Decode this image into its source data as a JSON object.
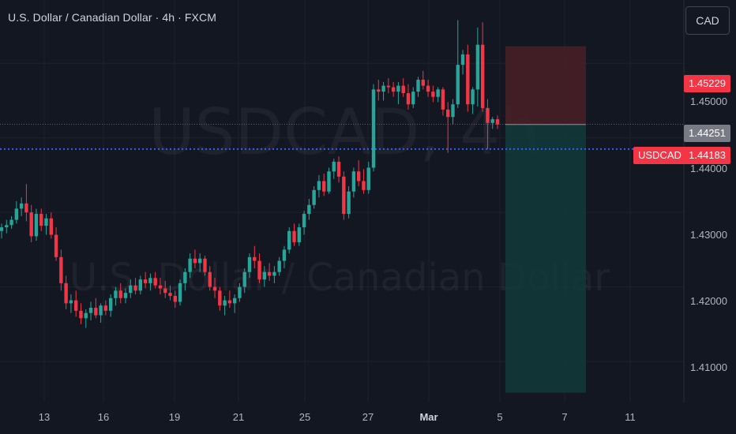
{
  "header": {
    "title": "U.S. Dollar / Canadian Dollar · 4h · FXCM",
    "currency_button": "CAD"
  },
  "watermark": {
    "symbol": "USDCAD, 4h",
    "name": "U.S. Dollar / Canadian Dollar"
  },
  "price_tags": {
    "stop": "1.45229",
    "prev_close": "1.44251",
    "symbol": "USDCAD",
    "last": "1.44183"
  },
  "colors": {
    "background": "#131722",
    "up": "#26a69a",
    "down": "#f23645",
    "stop_zone": "#4a1e26",
    "target_zone": "#12393a",
    "dotted_line": "#2962ff"
  },
  "chart_data": {
    "type": "candlestick",
    "y_ticks": [
      "1.45000",
      "1.44000",
      "1.43000",
      "1.42000",
      "1.41000"
    ],
    "x_ticks": [
      "13",
      "16",
      "19",
      "21",
      "25",
      "27",
      "Mar",
      "5",
      "7",
      "11"
    ],
    "ylim": [
      1.4045,
      1.4585
    ],
    "position": {
      "type": "short",
      "entry": 1.4418,
      "stop": 1.45229,
      "target": 1.4058
    },
    "current_price": 1.44183,
    "dotted_level": 1.4385,
    "candles": [
      [
        1.4275,
        1.4285,
        1.4265,
        1.428
      ],
      [
        1.428,
        1.429,
        1.4272,
        1.4283
      ],
      [
        1.4283,
        1.4295,
        1.4278,
        1.429
      ],
      [
        1.429,
        1.4315,
        1.4285,
        1.4305
      ],
      [
        1.4305,
        1.432,
        1.4295,
        1.4312
      ],
      [
        1.4312,
        1.4338,
        1.4288,
        1.43
      ],
      [
        1.43,
        1.431,
        1.426,
        1.4268
      ],
      [
        1.4268,
        1.4305,
        1.4262,
        1.4298
      ],
      [
        1.4298,
        1.4305,
        1.4275,
        1.4282
      ],
      [
        1.4282,
        1.4298,
        1.427,
        1.4292
      ],
      [
        1.4292,
        1.43,
        1.4265,
        1.427
      ],
      [
        1.427,
        1.428,
        1.4235,
        1.424
      ],
      [
        1.424,
        1.425,
        1.4195,
        1.4205
      ],
      [
        1.4205,
        1.4215,
        1.417,
        1.4178
      ],
      [
        1.4178,
        1.419,
        1.4165,
        1.4182
      ],
      [
        1.4182,
        1.4195,
        1.416,
        1.4168
      ],
      [
        1.4168,
        1.4178,
        1.415,
        1.4158
      ],
      [
        1.4158,
        1.417,
        1.4145,
        1.4165
      ],
      [
        1.4165,
        1.418,
        1.4155,
        1.4172
      ],
      [
        1.4172,
        1.4185,
        1.4158,
        1.4162
      ],
      [
        1.4162,
        1.4178,
        1.4152,
        1.4175
      ],
      [
        1.4175,
        1.4182,
        1.4162,
        1.4168
      ],
      [
        1.4168,
        1.419,
        1.416,
        1.4185
      ],
      [
        1.4185,
        1.42,
        1.4175,
        1.4195
      ],
      [
        1.4195,
        1.4205,
        1.4178,
        1.4185
      ],
      [
        1.4185,
        1.4198,
        1.4178,
        1.4192
      ],
      [
        1.4192,
        1.421,
        1.4185,
        1.4202
      ],
      [
        1.4202,
        1.4212,
        1.419,
        1.4195
      ],
      [
        1.4195,
        1.4215,
        1.419,
        1.421
      ],
      [
        1.421,
        1.422,
        1.4198,
        1.4205
      ],
      [
        1.4205,
        1.4218,
        1.4195,
        1.4212
      ],
      [
        1.4212,
        1.422,
        1.4198,
        1.4202
      ],
      [
        1.4202,
        1.4212,
        1.419,
        1.4198
      ],
      [
        1.4198,
        1.4208,
        1.4185,
        1.4192
      ],
      [
        1.4192,
        1.4202,
        1.4182,
        1.4188
      ],
      [
        1.4188,
        1.4195,
        1.4172,
        1.418
      ],
      [
        1.418,
        1.421,
        1.4175,
        1.4205
      ],
      [
        1.4205,
        1.4225,
        1.4195,
        1.422
      ],
      [
        1.422,
        1.4245,
        1.4212,
        1.4238
      ],
      [
        1.4238,
        1.425,
        1.4225,
        1.4232
      ],
      [
        1.4232,
        1.4245,
        1.422,
        1.4238
      ],
      [
        1.4238,
        1.4242,
        1.4215,
        1.422
      ],
      [
        1.422,
        1.4228,
        1.4195,
        1.42
      ],
      [
        1.42,
        1.4212,
        1.4185,
        1.4195
      ],
      [
        1.4195,
        1.42,
        1.4168,
        1.4175
      ],
      [
        1.4175,
        1.4188,
        1.4162,
        1.4182
      ],
      [
        1.4182,
        1.4195,
        1.4172,
        1.4178
      ],
      [
        1.4178,
        1.419,
        1.4165,
        1.4185
      ],
      [
        1.4185,
        1.4205,
        1.418,
        1.42
      ],
      [
        1.42,
        1.4225,
        1.4192,
        1.422
      ],
      [
        1.422,
        1.4245,
        1.4212,
        1.424
      ],
      [
        1.424,
        1.4255,
        1.4225,
        1.4235
      ],
      [
        1.4235,
        1.4245,
        1.4205,
        1.421
      ],
      [
        1.421,
        1.4228,
        1.42,
        1.422
      ],
      [
        1.422,
        1.4232,
        1.4208,
        1.4215
      ],
      [
        1.4215,
        1.4228,
        1.4205,
        1.422
      ],
      [
        1.422,
        1.424,
        1.4215,
        1.4235
      ],
      [
        1.4235,
        1.4255,
        1.4225,
        1.425
      ],
      [
        1.425,
        1.428,
        1.4245,
        1.4275
      ],
      [
        1.4275,
        1.4285,
        1.4255,
        1.426
      ],
      [
        1.426,
        1.4285,
        1.4255,
        1.428
      ],
      [
        1.428,
        1.4302,
        1.427,
        1.4298
      ],
      [
        1.4298,
        1.4318,
        1.429,
        1.431
      ],
      [
        1.431,
        1.4335,
        1.4305,
        1.433
      ],
      [
        1.433,
        1.435,
        1.432,
        1.4342
      ],
      [
        1.4342,
        1.4352,
        1.4322,
        1.4328
      ],
      [
        1.4328,
        1.436,
        1.4325,
        1.4355
      ],
      [
        1.4355,
        1.4372,
        1.4345,
        1.4368
      ],
      [
        1.4368,
        1.4375,
        1.434,
        1.4348
      ],
      [
        1.4348,
        1.4355,
        1.429,
        1.4298
      ],
      [
        1.4298,
        1.4335,
        1.4292,
        1.4328
      ],
      [
        1.4328,
        1.436,
        1.432,
        1.4355
      ],
      [
        1.4355,
        1.437,
        1.4335,
        1.4342
      ],
      [
        1.4342,
        1.4358,
        1.4325,
        1.433
      ],
      [
        1.433,
        1.4368,
        1.4325,
        1.436
      ],
      [
        1.436,
        1.4472,
        1.4355,
        1.4465
      ],
      [
        1.4465,
        1.4478,
        1.445,
        1.4462
      ],
      [
        1.4462,
        1.4475,
        1.445,
        1.447
      ],
      [
        1.447,
        1.448,
        1.446,
        1.4468
      ],
      [
        1.4468,
        1.4475,
        1.4455,
        1.4462
      ],
      [
        1.4462,
        1.4475,
        1.4445,
        1.447
      ],
      [
        1.447,
        1.448,
        1.4455,
        1.446
      ],
      [
        1.446,
        1.4472,
        1.4438,
        1.4445
      ],
      [
        1.4445,
        1.4468,
        1.444,
        1.4462
      ],
      [
        1.4462,
        1.4482,
        1.4455,
        1.4478
      ],
      [
        1.4478,
        1.449,
        1.4465,
        1.447
      ],
      [
        1.447,
        1.4478,
        1.4455,
        1.4462
      ],
      [
        1.4462,
        1.447,
        1.4448,
        1.4455
      ],
      [
        1.4455,
        1.4468,
        1.4448,
        1.4465
      ],
      [
        1.4465,
        1.4468,
        1.443,
        1.4438
      ],
      [
        1.4438,
        1.4448,
        1.438,
        1.4428
      ],
      [
        1.4428,
        1.4452,
        1.4418,
        1.4445
      ],
      [
        1.4445,
        1.4558,
        1.444,
        1.4498
      ],
      [
        1.4498,
        1.4518,
        1.4485,
        1.4512
      ],
      [
        1.4512,
        1.4525,
        1.4435,
        1.4445
      ],
      [
        1.4445,
        1.4468,
        1.4432,
        1.4465
      ],
      [
        1.4465,
        1.4548,
        1.4442,
        1.4525
      ],
      [
        1.4525,
        1.4555,
        1.4435,
        1.444
      ],
      [
        1.444,
        1.4452,
        1.4385,
        1.442
      ],
      [
        1.442,
        1.4428,
        1.4412,
        1.4425
      ],
      [
        1.4425,
        1.443,
        1.4412,
        1.4418
      ]
    ]
  }
}
